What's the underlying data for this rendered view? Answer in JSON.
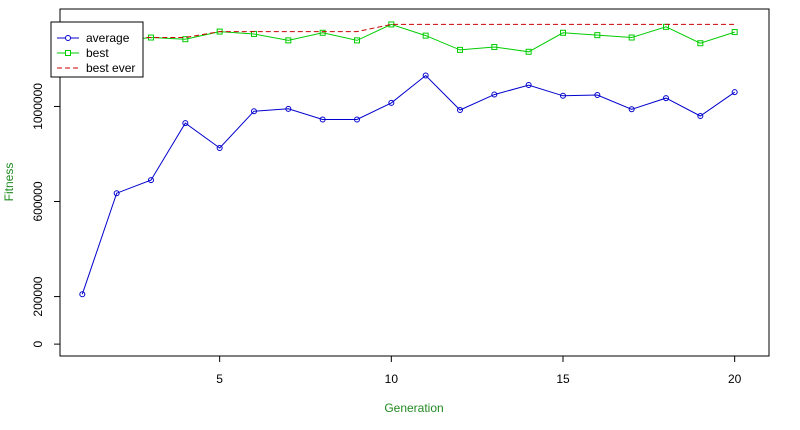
{
  "chart_data": {
    "type": "line",
    "xlabel": "Generation",
    "ylabel": "Fitness",
    "label_color": "#228B22",
    "xlim": [
      0.35,
      21.0
    ],
    "ylim": [
      -50000,
      1410000
    ],
    "x_ticks": [
      5,
      10,
      15,
      20
    ],
    "y_ticks": [
      0,
      200000,
      600000,
      1000000
    ],
    "x_tick_labels": [
      "5",
      "10",
      "15",
      "20"
    ],
    "y_tick_labels": [
      "0",
      "200000",
      "600000",
      "1000000"
    ],
    "grid": false,
    "legend_placement": "top-left",
    "x": [
      1,
      2,
      3,
      4,
      5,
      6,
      7,
      8,
      9,
      10,
      11,
      12,
      13,
      14,
      15,
      16,
      17,
      18,
      19,
      20
    ],
    "series": [
      {
        "name": "average",
        "color": "#0000CD",
        "line": "solid",
        "marker": "circle",
        "values": [
          210000,
          635000,
          690000,
          930000,
          825000,
          980000,
          990000,
          945000,
          945000,
          1015000,
          1130000,
          985000,
          1050000,
          1090000,
          1045000,
          1048000,
          988000,
          1035000,
          960000,
          1060000
        ]
      },
      {
        "name": "best",
        "color": "#00CD00",
        "line": "solid",
        "marker": "square",
        "values": [
          1285000,
          1275000,
          1290000,
          1283000,
          1315000,
          1305000,
          1278000,
          1310000,
          1278000,
          1345000,
          1298000,
          1238000,
          1250000,
          1230000,
          1310000,
          1300000,
          1290000,
          1335000,
          1266000,
          1313000
        ]
      },
      {
        "name": "best ever",
        "color": "#CD0000",
        "line": "dashed",
        "marker": "none",
        "values": [
          1285000,
          1285000,
          1290000,
          1290000,
          1315000,
          1315000,
          1315000,
          1315000,
          1315000,
          1345000,
          1345000,
          1345000,
          1345000,
          1345000,
          1345000,
          1345000,
          1345000,
          1345000,
          1345000,
          1345000
        ]
      }
    ]
  }
}
